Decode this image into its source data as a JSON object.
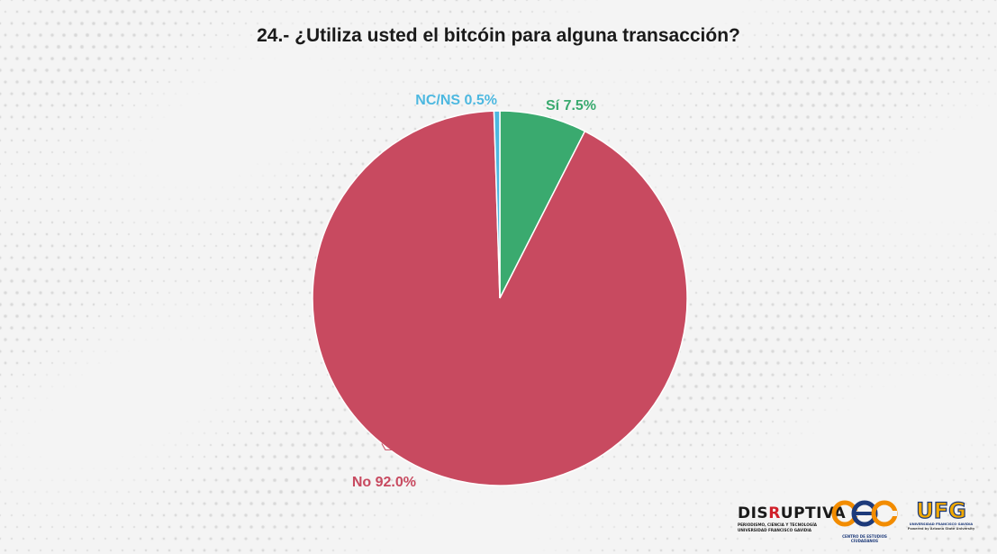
{
  "chart_data": {
    "type": "pie",
    "title": "24.- ¿Utiliza usted el bitcóin para alguna transacción?",
    "slices": [
      {
        "label": "Sí",
        "value": 7.5,
        "display": "Sí 7.5%",
        "color": "#3aaa6f"
      },
      {
        "label": "No",
        "value": 92.0,
        "display": "No 92.0%",
        "color": "#c84a60"
      },
      {
        "label": "NC/NS",
        "value": 0.5,
        "display": "NC/NS 0.5%",
        "color": "#4db8e0"
      }
    ],
    "start_angle": "12 o'clock",
    "direction": "clockwise",
    "legend": "none"
  },
  "logos": {
    "disruptiva": {
      "word_a": "DIS",
      "word_r": "R",
      "word_b": "UPTIVA",
      "line1": "PERIODISMO, CIENCIA Y TECNOLOGÍA",
      "line2": "UNIVERSIDAD FRANCISCO GAVIDIA"
    },
    "cec": {
      "text": "CENTRO DE ESTUDIOS CIUDADANOS"
    },
    "ufg": {
      "word": "UFG",
      "line1": "UNIVERSIDAD FRANCISCO GAVIDIA",
      "line2": "Powered by Arizona State University"
    }
  }
}
